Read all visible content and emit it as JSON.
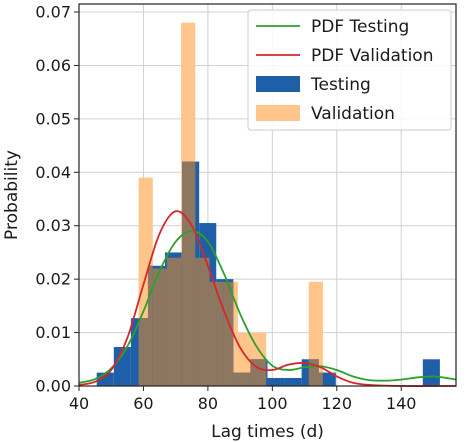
{
  "chart_data": {
    "type": "bar",
    "xlabel": "Lag times (d)",
    "ylabel": "Probability",
    "xlim": [
      40,
      157
    ],
    "ylim": [
      0,
      0.0715
    ],
    "xticks": [
      40,
      60,
      80,
      100,
      120,
      140
    ],
    "yticks": [
      0.0,
      0.01,
      0.02,
      0.03,
      0.04,
      0.05,
      0.06,
      0.07
    ],
    "grid": true,
    "legend_position": "top-right",
    "colors": {
      "testing": "#1f5fa8",
      "validation": "#ffc58a",
      "overlap": "#8e7760",
      "pdf_testing": "#2ca02c",
      "pdf_validation": "#d62728"
    },
    "legend": [
      {
        "label": "PDF Testing",
        "kind": "line",
        "color": "#2ca02c"
      },
      {
        "label": "PDF Validation",
        "kind": "line",
        "color": "#d62728"
      },
      {
        "label": "Testing",
        "kind": "patch",
        "color": "#1f5fa8"
      },
      {
        "label": "Validation",
        "kind": "patch",
        "color": "#ffc58a"
      }
    ],
    "series": [
      {
        "name": "Testing",
        "type": "bar",
        "bins": [
          {
            "x0": 45.5,
            "x1": 50.8,
            "value": 0.0025
          },
          {
            "x0": 50.8,
            "x1": 56.1,
            "value": 0.0073
          },
          {
            "x0": 56.1,
            "x1": 61.4,
            "value": 0.0127
          },
          {
            "x0": 61.4,
            "x1": 66.7,
            "value": 0.0225
          },
          {
            "x0": 66.7,
            "x1": 72.0,
            "value": 0.025
          },
          {
            "x0": 72.0,
            "x1": 77.3,
            "value": 0.042
          },
          {
            "x0": 77.3,
            "x1": 82.6,
            "value": 0.0305
          },
          {
            "x0": 82.6,
            "x1": 87.9,
            "value": 0.02
          },
          {
            "x0": 87.9,
            "x1": 93.2,
            "value": 0.0025
          },
          {
            "x0": 93.2,
            "x1": 98.5,
            "value": 0.005
          },
          {
            "x0": 98.5,
            "x1": 103.8,
            "value": 0.0015
          },
          {
            "x0": 103.8,
            "x1": 109.1,
            "value": 0.0015
          },
          {
            "x0": 109.1,
            "x1": 114.4,
            "value": 0.005
          },
          {
            "x0": 114.4,
            "x1": 119.7,
            "value": 0.0025
          },
          {
            "x0": 146.7,
            "x1": 152.0,
            "value": 0.005
          }
        ]
      },
      {
        "name": "Validation",
        "type": "bar",
        "bins": [
          {
            "x0": 58.5,
            "x1": 62.9,
            "value": 0.039
          },
          {
            "x0": 62.9,
            "x1": 67.3,
            "value": 0.022
          },
          {
            "x0": 67.3,
            "x1": 71.7,
            "value": 0.024
          },
          {
            "x0": 71.7,
            "x1": 76.1,
            "value": 0.068
          },
          {
            "x0": 76.1,
            "x1": 80.5,
            "value": 0.024
          },
          {
            "x0": 80.5,
            "x1": 84.9,
            "value": 0.0195
          },
          {
            "x0": 84.9,
            "x1": 89.3,
            "value": 0.0195
          },
          {
            "x0": 89.3,
            "x1": 93.7,
            "value": 0.01
          },
          {
            "x0": 93.7,
            "x1": 98.1,
            "value": 0.01
          },
          {
            "x0": 98.1,
            "x1": 102.5,
            "value": 0.0
          },
          {
            "x0": 102.5,
            "x1": 106.9,
            "value": 0.0
          },
          {
            "x0": 106.9,
            "x1": 111.3,
            "value": 0.0
          },
          {
            "x0": 111.3,
            "x1": 115.7,
            "value": 0.0195
          }
        ]
      },
      {
        "name": "PDF Testing",
        "type": "line",
        "points": [
          [
            40,
            0.0006
          ],
          [
            45,
            0.0013
          ],
          [
            50,
            0.0033
          ],
          [
            55,
            0.0074
          ],
          [
            60,
            0.014
          ],
          [
            65,
            0.0215
          ],
          [
            70,
            0.027
          ],
          [
            75,
            0.029
          ],
          [
            80,
            0.027
          ],
          [
            85,
            0.021
          ],
          [
            90,
            0.0135
          ],
          [
            95,
            0.0075
          ],
          [
            100,
            0.0038
          ],
          [
            105,
            0.003
          ],
          [
            110,
            0.0035
          ],
          [
            115,
            0.0037
          ],
          [
            120,
            0.003
          ],
          [
            125,
            0.0018
          ],
          [
            130,
            0.0011
          ],
          [
            135,
            0.001
          ],
          [
            140,
            0.0012
          ],
          [
            145,
            0.0016
          ],
          [
            150,
            0.0018
          ],
          [
            155,
            0.0014
          ],
          [
            157,
            0.0012
          ]
        ]
      },
      {
        "name": "PDF Validation",
        "type": "line",
        "points": [
          [
            40,
            0.0002
          ],
          [
            45,
            0.0008
          ],
          [
            50,
            0.003
          ],
          [
            55,
            0.009
          ],
          [
            60,
            0.019
          ],
          [
            65,
            0.0285
          ],
          [
            70,
            0.0327
          ],
          [
            75,
            0.03
          ],
          [
            80,
            0.0225
          ],
          [
            85,
            0.014
          ],
          [
            90,
            0.0072
          ],
          [
            95,
            0.0036
          ],
          [
            100,
            0.003
          ],
          [
            105,
            0.004
          ],
          [
            110,
            0.0043
          ],
          [
            115,
            0.0035
          ],
          [
            120,
            0.0018
          ],
          [
            125,
            0.0006
          ],
          [
            130,
            0.0002
          ],
          [
            140,
            0.0
          ],
          [
            157,
            0.0
          ]
        ]
      }
    ]
  }
}
